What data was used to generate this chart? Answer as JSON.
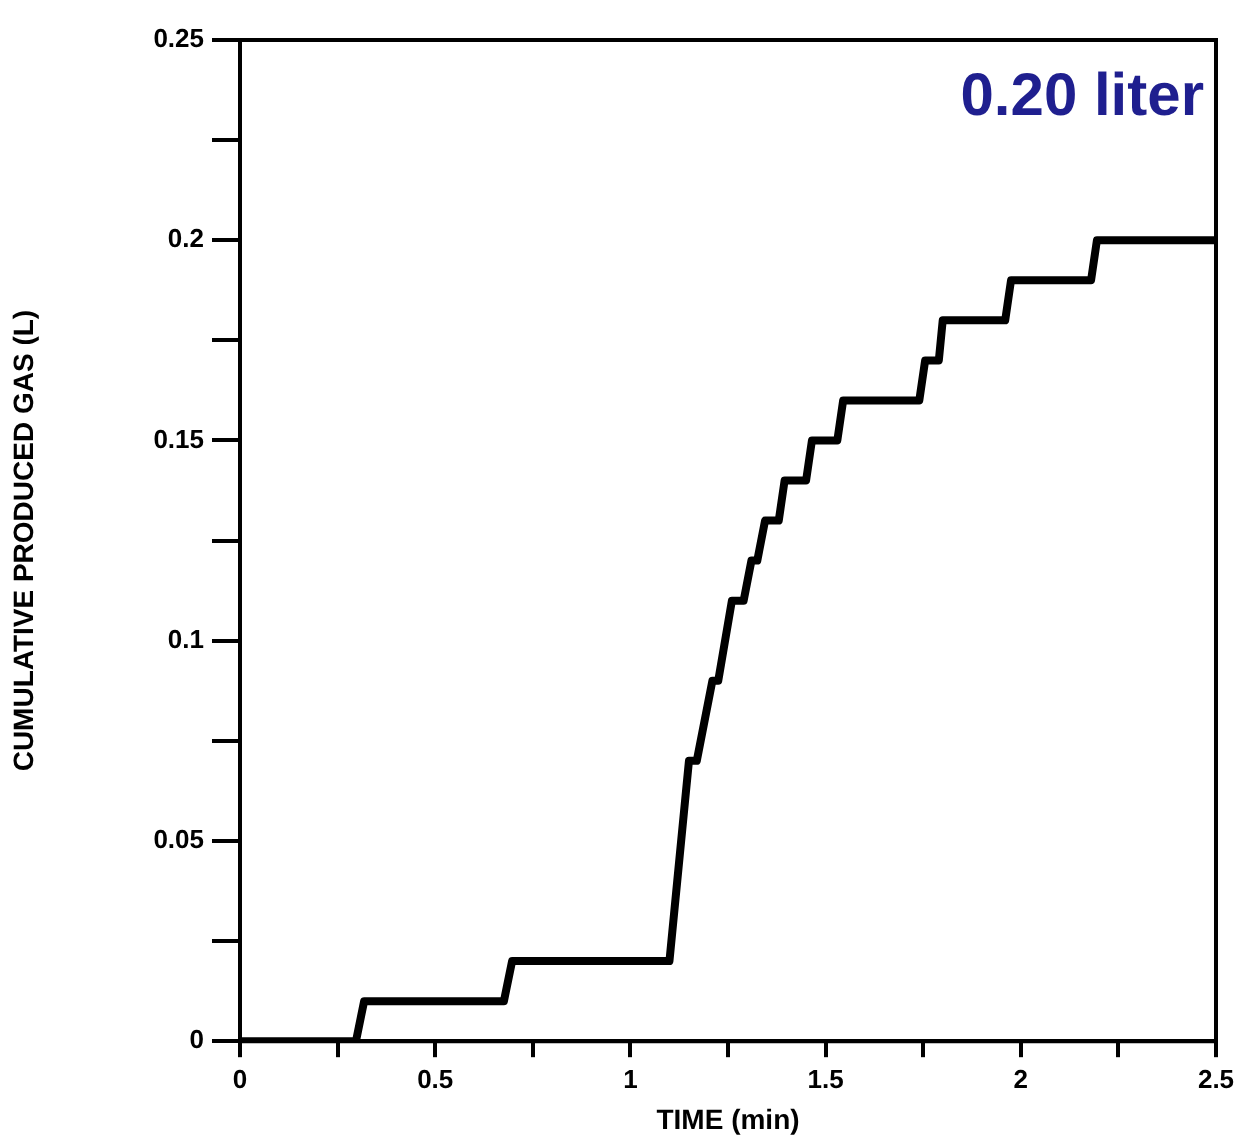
{
  "chart_data": {
    "type": "line",
    "xlabel": "TIME (min)",
    "ylabel": "CUMULATIVE PRODUCED GAS (L)",
    "annotations": [
      "0.20 liter"
    ],
    "x": [
      0,
      0.297,
      0.318,
      0.676,
      0.697,
      1.1,
      1.12,
      1.14,
      1.15,
      1.17,
      1.21,
      1.225,
      1.26,
      1.29,
      1.31,
      1.325,
      1.345,
      1.38,
      1.395,
      1.45,
      1.465,
      1.53,
      1.545,
      1.74,
      1.755,
      1.79,
      1.8,
      1.96,
      1.975,
      2.18,
      2.195,
      2.5
    ],
    "series": [
      {
        "color": "#000000",
        "values": [
          0,
          0,
          0.01,
          0.01,
          0.02,
          0.02,
          0.04,
          0.06,
          0.07,
          0.07,
          0.09,
          0.09,
          0.11,
          0.11,
          0.12,
          0.12,
          0.13,
          0.13,
          0.14,
          0.14,
          0.15,
          0.15,
          0.16,
          0.16,
          0.17,
          0.17,
          0.18,
          0.18,
          0.19,
          0.19,
          0.2,
          0.2
        ]
      }
    ],
    "xlim": [
      0,
      2.5
    ],
    "ylim": [
      0,
      0.25
    ],
    "xticks": [
      0,
      {
        "value": 0.25,
        "label": null
      },
      0.5,
      {
        "value": 0.75,
        "label": null
      },
      1,
      {
        "value": 1.25,
        "label": null
      },
      1.5,
      {
        "value": 1.75,
        "label": null
      },
      2,
      {
        "value": 2.25,
        "label": null
      },
      2.5
    ],
    "yticks": [
      0,
      {
        "value": 0.025,
        "label": null
      },
      0.05,
      {
        "value": 0.075,
        "label": null
      },
      0.1,
      {
        "value": 0.125,
        "label": null
      },
      0.15,
      {
        "value": 0.175,
        "label": null
      },
      0.2,
      {
        "value": 0.225,
        "label": null
      },
      0.25
    ],
    "grid": false,
    "legend": false,
    "marker": "none",
    "line_style": "solid"
  }
}
